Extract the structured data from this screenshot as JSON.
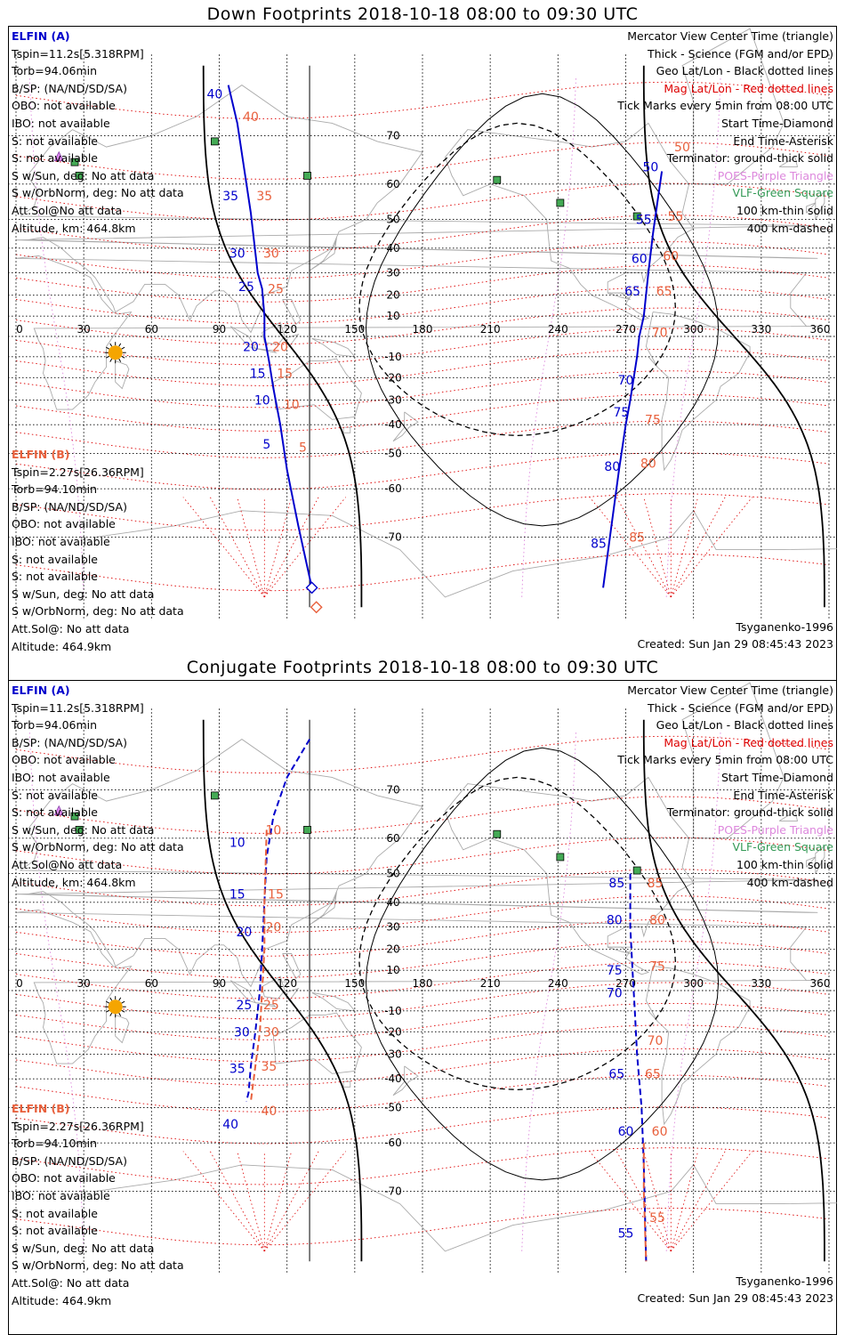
{
  "titles": {
    "down": "Down Footprints 2018-10-18 08:00 to 09:30 UTC",
    "conjugate": "Conjugate Footprints 2018-10-18 08:00 to 09:30 UTC"
  },
  "colors": {
    "elfin_a": "#0000cc",
    "elfin_b": "#e8603c",
    "geo_grid": "#000000",
    "mag_grid": "#dd0000",
    "coast": "#aaaaaa",
    "poes": "#dd88dd",
    "vlf": "#339955",
    "sun": "#f5a500"
  },
  "info": {
    "a_name": "ELFIN (A)",
    "a_lines": [
      "Tspin=11.2s[5.318RPM]",
      "Torb=94.06min",
      "B/SP: (NA/ND/SD/SA)",
      "OBO: not available",
      "IBO: not available",
      "S: not available",
      "S: not available",
      "S w/Sun, deg: No att data",
      "S w/OrbNorm, deg: No att data",
      "Att.Sol@No att data",
      "Altitude, km: 464.8km"
    ],
    "b_name": "ELFIN (B)",
    "b_lines": [
      "Tspin=2.27s[26.36RPM]",
      "Torb=94.10min",
      "B/SP: (NA/ND/SD/SA)",
      "OBO: not available",
      "IBO: not available",
      "S: not available",
      "S: not available",
      "S w/Sun, deg: No att data",
      "S w/OrbNorm, deg: No att data",
      "Att.Sol@: No att data"
    ],
    "b_altitude": "Altitude: 464.9km",
    "legend": [
      {
        "text": "Mercator View Center Time (triangle)",
        "color": "#000000"
      },
      {
        "text": "Thick - Science (FGM and/or EPD)",
        "color": "#000000"
      },
      {
        "text": "Geo Lat/Lon - Black dotted lines",
        "color": "#000000"
      },
      {
        "text": "Mag Lat/Lon - Red dotted lines",
        "color": "#dd0000"
      },
      {
        "text": "Tick Marks every 5min from 08:00 UTC",
        "color": "#000000"
      },
      {
        "text": "Start Time-Diamond",
        "color": "#000000"
      },
      {
        "text": "End Time-Asterisk",
        "color": "#000000"
      },
      {
        "text": "Terminator: ground-thick solid",
        "color": "#000000"
      },
      {
        "text": "POES-Purple Triangle",
        "color": "#dd88dd"
      },
      {
        "text": "VLF-Green Square",
        "color": "#339955"
      },
      {
        "text": "100 km-thin solid",
        "color": "#000000"
      },
      {
        "text": "400 km-dashed",
        "color": "#000000"
      }
    ],
    "model": "Tsyganenko-1996",
    "created": "Created: Sun Jan 29 08:45:43 2023"
  },
  "chart_data": [
    {
      "type": "line",
      "title": "Down Footprints 2018-10-18 08:00 to 09:30 UTC",
      "projection": "mercator",
      "xlim": [
        0,
        360
      ],
      "ylim": [
        -80,
        80
      ],
      "lon_ticks": [
        0,
        30,
        60,
        90,
        120,
        150,
        180,
        210,
        240,
        270,
        300,
        330,
        360
      ],
      "lat_ticks": [
        70,
        60,
        50,
        40,
        30,
        20,
        10,
        -10,
        -20,
        -30,
        -40,
        -50,
        -60,
        -70
      ],
      "series": [
        {
          "name": "ELFIN (A)",
          "style": "solid",
          "color": "#0000cc",
          "segments": [
            [
              [
                94,
                77
              ],
              [
                98,
                72
              ],
              [
                104,
                52
              ],
              [
                107,
                30
              ],
              [
                109,
                23
              ],
              [
                110,
                10
              ],
              [
                110,
                0
              ],
              [
                112,
                -12
              ],
              [
                114,
                -25
              ],
              [
                117,
                -40
              ],
              [
                120,
                -55
              ],
              [
                125,
                -68
              ],
              [
                131,
                -77
              ]
            ],
            [
              [
                260,
                -77
              ],
              [
                263,
                -70
              ],
              [
                267,
                -55
              ],
              [
                270,
                -40
              ],
              [
                272,
                -30
              ],
              [
                275,
                -10
              ],
              [
                276,
                0
              ],
              [
                278,
                10
              ],
              [
                280,
                30
              ],
              [
                282,
                45
              ],
              [
                284,
                55
              ],
              [
                286,
                63
              ]
            ]
          ],
          "ticks": [
            {
              "label": "40",
              "lon": 88,
              "lat": 76
            },
            {
              "label": "35",
              "lon": 95,
              "lat": 57
            },
            {
              "label": "30",
              "lon": 98,
              "lat": 38
            },
            {
              "label": "25",
              "lon": 102,
              "lat": 24
            },
            {
              "label": "20",
              "lon": 104,
              "lat": -5
            },
            {
              "label": "15",
              "lon": 107,
              "lat": -18
            },
            {
              "label": "10",
              "lon": 109,
              "lat": -30
            },
            {
              "label": "5",
              "lon": 111,
              "lat": -47
            },
            {
              "label": "50",
              "lon": 281,
              "lat": 64
            },
            {
              "label": "55",
              "lon": 278,
              "lat": 50
            },
            {
              "label": "60",
              "lon": 276,
              "lat": 36
            },
            {
              "label": "65",
              "lon": 273,
              "lat": 22
            },
            {
              "label": "70",
              "lon": 270,
              "lat": -21
            },
            {
              "label": "75",
              "lon": 268,
              "lat": -35
            },
            {
              "label": "80",
              "lon": 264,
              "lat": -54
            },
            {
              "label": "85",
              "lon": 258,
              "lat": -71
            }
          ]
        },
        {
          "name": "ELFIN (B)",
          "style": "none",
          "color": "#e8603c",
          "ticks": [
            {
              "label": "40",
              "lon": 104,
              "lat": 73
            },
            {
              "label": "35",
              "lon": 110,
              "lat": 57
            },
            {
              "label": "30",
              "lon": 113,
              "lat": 38
            },
            {
              "label": "25",
              "lon": 115,
              "lat": 23
            },
            {
              "label": "20",
              "lon": 117,
              "lat": -5
            },
            {
              "label": "15",
              "lon": 119,
              "lat": -18
            },
            {
              "label": "10",
              "lon": 122,
              "lat": -32
            },
            {
              "label": "5",
              "lon": 127,
              "lat": -48
            },
            {
              "label": "50",
              "lon": 295,
              "lat": 68
            },
            {
              "label": "55",
              "lon": 292,
              "lat": 51
            },
            {
              "label": "60",
              "lon": 290,
              "lat": 37
            },
            {
              "label": "65",
              "lon": 287,
              "lat": 22
            },
            {
              "label": "70",
              "lon": 285,
              "lat": 2
            },
            {
              "label": "75",
              "lon": 282,
              "lat": -38
            },
            {
              "label": "80",
              "lon": 280,
              "lat": -53
            },
            {
              "label": "85",
              "lon": 275,
              "lat": -70
            }
          ]
        }
      ],
      "start_markers": [
        {
          "satellite": "ELFIN (A)",
          "lon": 131,
          "lat": -77
        },
        {
          "satellite": "ELFIN (B)",
          "lon": 133,
          "lat": -79
        }
      ],
      "sun": {
        "lon": 44,
        "lat": -8
      },
      "vlf_stations": [
        [
          88,
          69
        ],
        [
          26,
          65
        ],
        [
          28,
          62
        ],
        [
          129,
          62
        ],
        [
          213,
          61
        ],
        [
          241,
          55
        ],
        [
          275,
          51
        ]
      ],
      "poes": [
        [
          19,
          66
        ]
      ]
    },
    {
      "type": "line",
      "title": "Conjugate Footprints 2018-10-18 08:00 to 09:30 UTC",
      "projection": "mercator",
      "xlim": [
        0,
        360
      ],
      "ylim": [
        -80,
        80
      ],
      "lon_ticks": [
        0,
        30,
        60,
        90,
        120,
        150,
        180,
        210,
        240,
        270,
        300,
        330,
        360
      ],
      "lat_ticks": [
        70,
        60,
        50,
        40,
        30,
        20,
        10,
        -10,
        -20,
        -30,
        -40,
        -50,
        -60,
        -70
      ],
      "series": [
        {
          "name": "ELFIN (A)",
          "style": "dashed",
          "color": "#0000cc",
          "segments": [
            [
              [
                130,
                77
              ],
              [
                120,
                72
              ],
              [
                114,
                65
              ],
              [
                111,
                55
              ],
              [
                110,
                40
              ],
              [
                109,
                20
              ],
              [
                108,
                0
              ],
              [
                106,
                -20
              ],
              [
                104,
                -35
              ],
              [
                103,
                -45
              ],
              [
                102,
                -48
              ]
            ],
            [
              [
                272,
                50
              ],
              [
                272,
                30
              ],
              [
                273,
                10
              ],
              [
                274,
                -10
              ],
              [
                275,
                -30
              ],
              [
                277,
                -50
              ],
              [
                278,
                -65
              ],
              [
                279,
                -79
              ]
            ]
          ],
          "ticks": [
            {
              "label": "10",
              "lon": 98,
              "lat": 59
            },
            {
              "label": "15",
              "lon": 98,
              "lat": 43
            },
            {
              "label": "20",
              "lon": 101,
              "lat": 28
            },
            {
              "label": "25",
              "lon": 101,
              "lat": -7
            },
            {
              "label": "30",
              "lon": 100,
              "lat": -20
            },
            {
              "label": "35",
              "lon": 98,
              "lat": -36
            },
            {
              "label": "40",
              "lon": 95,
              "lat": -55
            },
            {
              "label": "85",
              "lon": 266,
              "lat": 47
            },
            {
              "label": "80",
              "lon": 265,
              "lat": 33
            },
            {
              "label": "75",
              "lon": 265,
              "lat": 10
            },
            {
              "label": "70",
              "lon": 265,
              "lat": -1
            },
            {
              "label": "65",
              "lon": 266,
              "lat": -38
            },
            {
              "label": "60",
              "lon": 270,
              "lat": -57
            },
            {
              "label": "55",
              "lon": 270,
              "lat": -76
            }
          ]
        },
        {
          "name": "ELFIN (B)",
          "style": "dashed",
          "color": "#e8603c",
          "segments": [
            [
              [
                111,
                62
              ],
              [
                110,
                40
              ],
              [
                110,
                20
              ],
              [
                109,
                0
              ],
              [
                108,
                -20
              ],
              [
                106,
                -35
              ],
              [
                104,
                -48
              ]
            ],
            [
              [
                278,
                -60
              ],
              [
                278,
                -70
              ],
              [
                279,
                -79
              ]
            ]
          ],
          "ticks": [
            {
              "label": "10",
              "lon": 114,
              "lat": 62
            },
            {
              "label": "15",
              "lon": 115,
              "lat": 43
            },
            {
              "label": "20",
              "lon": 114,
              "lat": 30
            },
            {
              "label": "25",
              "lon": 113,
              "lat": -7
            },
            {
              "label": "30",
              "lon": 113,
              "lat": -20
            },
            {
              "label": "35",
              "lon": 112,
              "lat": -35
            },
            {
              "label": "40",
              "lon": 112,
              "lat": -51
            },
            {
              "label": "85",
              "lon": 283,
              "lat": 47
            },
            {
              "label": "80",
              "lon": 284,
              "lat": 33
            },
            {
              "label": "75",
              "lon": 284,
              "lat": 12
            },
            {
              "label": "70",
              "lon": 283,
              "lat": -24
            },
            {
              "label": "65",
              "lon": 282,
              "lat": -38
            },
            {
              "label": "60",
              "lon": 285,
              "lat": -57
            },
            {
              "label": "55",
              "lon": 284,
              "lat": -74
            }
          ]
        }
      ],
      "sun": {
        "lon": 44,
        "lat": -8
      },
      "vlf_stations": [
        [
          88,
          69
        ],
        [
          26,
          65
        ],
        [
          28,
          62
        ],
        [
          129,
          62
        ],
        [
          213,
          61
        ],
        [
          241,
          55
        ],
        [
          275,
          51
        ]
      ],
      "poes": [
        [
          19,
          66
        ]
      ]
    }
  ]
}
